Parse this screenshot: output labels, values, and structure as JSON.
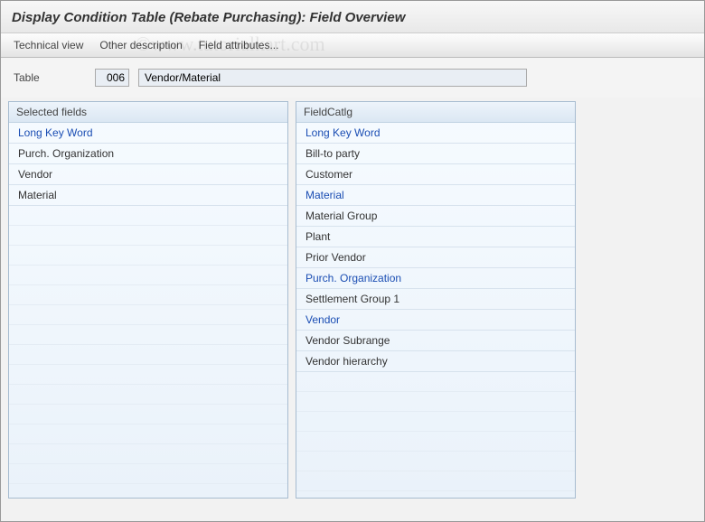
{
  "header": {
    "title": "Display Condition Table (Rebate Purchasing): Field Overview"
  },
  "toolbar": {
    "items": [
      {
        "label": "Technical view"
      },
      {
        "label": "Other description"
      },
      {
        "label": "Field attributes..."
      }
    ]
  },
  "form": {
    "label": "Table",
    "code": "006",
    "description": "Vendor/Material"
  },
  "panels": {
    "selected": {
      "title": "Selected fields",
      "rows": [
        {
          "label": "Long Key Word",
          "link": true
        },
        {
          "label": "Purch. Organization",
          "link": false
        },
        {
          "label": "Vendor",
          "link": false
        },
        {
          "label": "Material",
          "link": false
        }
      ]
    },
    "catalog": {
      "title": "FieldCatlg",
      "rows": [
        {
          "label": "Long Key Word",
          "link": true
        },
        {
          "label": "Bill-to party",
          "link": false
        },
        {
          "label": "Customer",
          "link": false
        },
        {
          "label": "Material",
          "link": true
        },
        {
          "label": "Material Group",
          "link": false
        },
        {
          "label": "Plant",
          "link": false
        },
        {
          "label": "Prior Vendor",
          "link": false
        },
        {
          "label": "Purch. Organization",
          "link": true
        },
        {
          "label": "Settlement Group 1",
          "link": false
        },
        {
          "label": "Vendor",
          "link": true
        },
        {
          "label": "Vendor Subrange",
          "link": false
        },
        {
          "label": "Vendor hierarchy",
          "link": false
        }
      ]
    }
  },
  "watermark": "©www.tutorialkart.com"
}
